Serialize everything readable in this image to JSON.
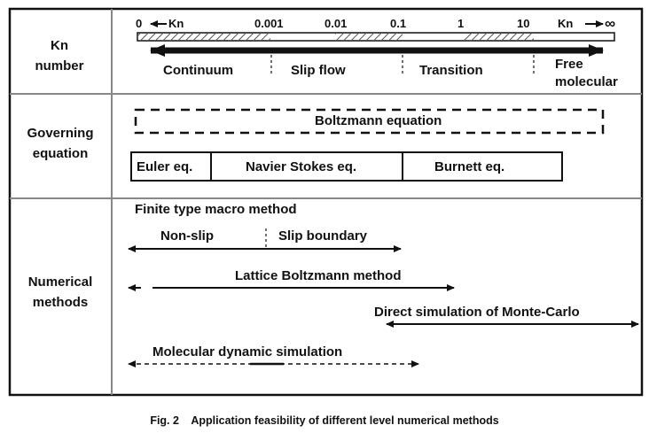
{
  "rows": {
    "kn_label_1": "Kn",
    "kn_label_2": "number",
    "gov_label_1": "Governing",
    "gov_label_2": "equation",
    "num_label_1": "Numerical",
    "num_label_2": "methods"
  },
  "kn_axis": {
    "left_end": "0",
    "left_arrow_label": "Kn",
    "right_end": "Kn",
    "infinity": "∞",
    "ticks": [
      "0.001",
      "0.01",
      "0.1",
      "1",
      "10"
    ]
  },
  "regimes": {
    "continuum": "Continuum",
    "slip": "Slip flow",
    "transition": "Transition",
    "free_1": "Free",
    "free_2": "molecular"
  },
  "equations": {
    "boltzmann": "Boltzmann equation",
    "euler": "Euler eq.",
    "navier": "Navier Stokes eq.",
    "burnett": "Burnett eq."
  },
  "methods": {
    "finite_macro": "Finite type macro method",
    "non_slip": "Non-slip",
    "slip_boundary": "Slip boundary",
    "lbm": "Lattice Boltzmann method",
    "dsmc": "Direct simulation of Monte-Carlo",
    "md": "Molecular dynamic simulation"
  },
  "caption": "Fig. 2    Application feasibility of different level numerical methods",
  "colors": {
    "line": "#111111",
    "hatch": "#555555",
    "background": "#ffffff"
  }
}
